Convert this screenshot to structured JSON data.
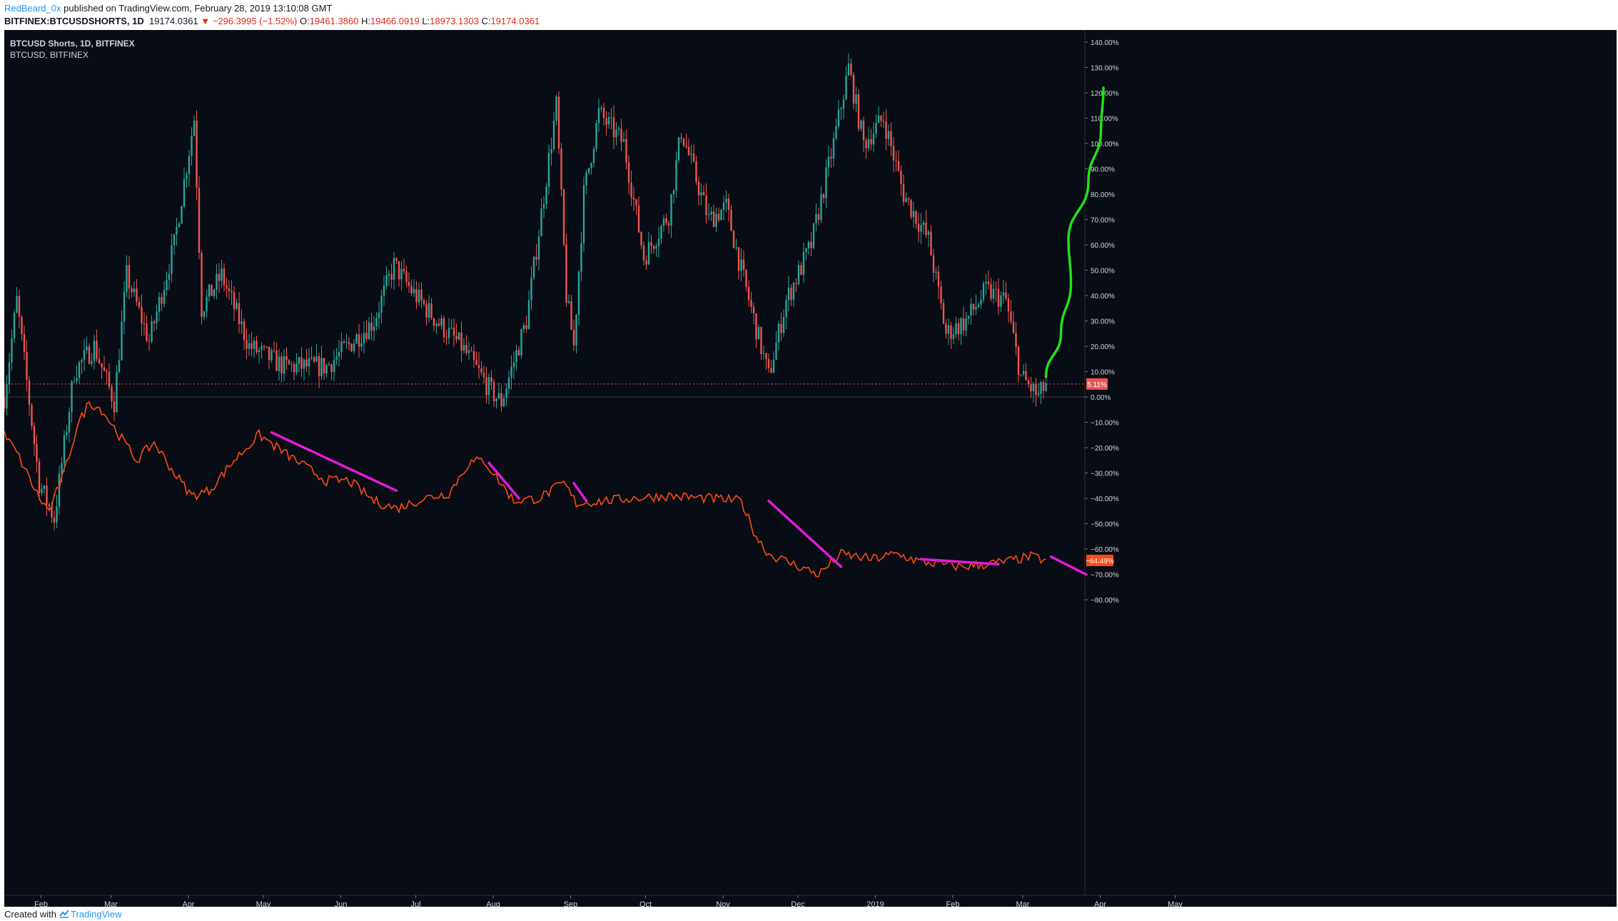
{
  "header": {
    "author": "RedBeard_0x",
    "published_text": "published on TradingView.com, February 28, 2019 13:10:08 GMT",
    "symbol": "BITFINEX:BTCUSDSHORTS, 1D",
    "last": "19174.0361",
    "change": "−296.3995 (−1.52%)",
    "open_label": "O:",
    "open": "19461.3860",
    "high_label": "H:",
    "high": "19466.0919",
    "low_label": "L:",
    "low": "18973.1303",
    "close_label": "C:",
    "close": "19174.0361"
  },
  "legend": {
    "main": "BTCUSD Shorts, 1D, BITFINEX",
    "compare": "BTCUSD, BITFINEX"
  },
  "footer": {
    "created_with": "Created with",
    "brand": "TradingView"
  },
  "colors": {
    "background": "#080c14",
    "up": "#26a69a",
    "down": "#ef5350",
    "compare_line": "#ff4a14",
    "trend_lines": "#e41ad9",
    "projection": "#22e01a",
    "price_line": "#ef5350"
  },
  "chart_data": {
    "type": "candlestick",
    "y_unit": "%",
    "ylim": [
      -80,
      140
    ],
    "y_ticks": [
      "140.00%",
      "130.00%",
      "120.00%",
      "110.00%",
      "100.00%",
      "90.00%",
      "80.00%",
      "70.00%",
      "60.00%",
      "50.00%",
      "40.00%",
      "30.00%",
      "20.00%",
      "10.00%",
      "0.00%",
      "−10.00%",
      "−20.00%",
      "−30.00%",
      "−40.00%",
      "−50.00%",
      "−60.00%",
      "−70.00%",
      "−80.00%"
    ],
    "x_ticks": [
      "Feb",
      "Mar",
      "Apr",
      "May",
      "Jun",
      "Jul",
      "Aug",
      "Sep",
      "Oct",
      "Nov",
      "Dec",
      "2019",
      "Feb",
      "Mar",
      "Apr",
      "May"
    ],
    "x_range": [
      "2018-01-23",
      "2019-05-31"
    ],
    "last_value_label": "5.11%",
    "compare_value_label": "−64.49%",
    "series": [
      {
        "name": "BTCUSD Shorts",
        "kind": "candles",
        "anchors": [
          [
            "2018-01-23",
            0
          ],
          [
            "2018-01-28",
            38
          ],
          [
            "2018-02-06",
            -34
          ],
          [
            "2018-02-12",
            -48
          ],
          [
            "2018-02-20",
            10
          ],
          [
            "2018-02-28",
            20
          ],
          [
            "2018-03-08",
            -2
          ],
          [
            "2018-03-13",
            48
          ],
          [
            "2018-03-22",
            22
          ],
          [
            "2018-04-01",
            60
          ],
          [
            "2018-04-09",
            110
          ],
          [
            "2018-04-12",
            35
          ],
          [
            "2018-04-20",
            48
          ],
          [
            "2018-05-01",
            20
          ],
          [
            "2018-05-15",
            12
          ],
          [
            "2018-06-01",
            12
          ],
          [
            "2018-06-20",
            30
          ],
          [
            "2018-06-28",
            52
          ],
          [
            "2018-07-05",
            42
          ],
          [
            "2018-07-15",
            30
          ],
          [
            "2018-07-25",
            20
          ],
          [
            "2018-08-06",
            2
          ],
          [
            "2018-08-10",
            -2
          ],
          [
            "2018-08-20",
            30
          ],
          [
            "2018-09-01",
            115
          ],
          [
            "2018-09-05",
            40
          ],
          [
            "2018-09-08",
            20
          ],
          [
            "2018-09-12",
            80
          ],
          [
            "2018-09-18",
            112
          ],
          [
            "2018-09-28",
            100
          ],
          [
            "2018-10-06",
            55
          ],
          [
            "2018-10-16",
            72
          ],
          [
            "2018-10-21",
            105
          ],
          [
            "2018-11-01",
            70
          ],
          [
            "2018-11-08",
            75
          ],
          [
            "2018-11-14",
            50
          ],
          [
            "2018-11-25",
            8
          ],
          [
            "2018-12-02",
            38
          ],
          [
            "2018-12-12",
            60
          ],
          [
            "2018-12-21",
            100
          ],
          [
            "2018-12-27",
            130
          ],
          [
            "2019-01-02",
            100
          ],
          [
            "2019-01-10",
            110
          ],
          [
            "2019-01-18",
            80
          ],
          [
            "2019-01-28",
            62
          ],
          [
            "2019-02-04",
            25
          ],
          [
            "2019-02-12",
            30
          ],
          [
            "2019-02-20",
            42
          ],
          [
            "2019-02-28",
            38
          ],
          [
            "2019-03-06",
            8
          ],
          [
            "2019-03-13",
            0
          ],
          [
            "2019-03-16",
            5.11
          ]
        ]
      },
      {
        "name": "BTCUSD, BITFINEX",
        "kind": "line",
        "anchors": [
          [
            "2018-01-23",
            -15
          ],
          [
            "2018-01-28",
            -22
          ],
          [
            "2018-02-06",
            -40
          ],
          [
            "2018-02-10",
            -45
          ],
          [
            "2018-02-16",
            -30
          ],
          [
            "2018-02-21",
            -12
          ],
          [
            "2018-02-26",
            -2
          ],
          [
            "2018-03-03",
            -5
          ],
          [
            "2018-03-10",
            -15
          ],
          [
            "2018-03-17",
            -25
          ],
          [
            "2018-03-24",
            -18
          ],
          [
            "2018-04-01",
            -30
          ],
          [
            "2018-04-08",
            -39
          ],
          [
            "2018-04-15",
            -37
          ],
          [
            "2018-04-25",
            -25
          ],
          [
            "2018-05-05",
            -15
          ],
          [
            "2018-05-08",
            -17
          ],
          [
            "2018-05-15",
            -22
          ],
          [
            "2018-06-01",
            -33
          ],
          [
            "2018-06-10",
            -33
          ],
          [
            "2018-06-20",
            -41
          ],
          [
            "2018-06-29",
            -44
          ],
          [
            "2018-07-10",
            -40
          ],
          [
            "2018-07-20",
            -38
          ],
          [
            "2018-07-28",
            -26
          ],
          [
            "2018-08-03",
            -25
          ],
          [
            "2018-08-15",
            -41
          ],
          [
            "2018-08-25",
            -40
          ],
          [
            "2018-09-04",
            -34
          ],
          [
            "2018-09-09",
            -42
          ],
          [
            "2018-09-20",
            -41
          ],
          [
            "2018-10-01",
            -40
          ],
          [
            "2018-10-15",
            -39
          ],
          [
            "2018-11-01",
            -40
          ],
          [
            "2018-11-14",
            -41
          ],
          [
            "2018-11-20",
            -55
          ],
          [
            "2018-11-25",
            -62
          ],
          [
            "2018-12-05",
            -66
          ],
          [
            "2018-12-15",
            -70
          ],
          [
            "2018-12-24",
            -62
          ],
          [
            "2019-01-05",
            -64
          ],
          [
            "2019-01-15",
            -62
          ],
          [
            "2019-01-25",
            -65
          ],
          [
            "2019-02-10",
            -67
          ],
          [
            "2019-02-20",
            -66
          ],
          [
            "2019-02-28",
            -65
          ],
          [
            "2019-03-10",
            -63
          ],
          [
            "2019-03-16",
            -64.49
          ]
        ]
      }
    ],
    "annotations": [
      {
        "kind": "trend-line",
        "from": [
          "2018-05-10",
          -14
        ],
        "to": [
          "2018-06-29",
          -37
        ]
      },
      {
        "kind": "trend-line",
        "from": [
          "2018-08-05",
          -26
        ],
        "to": [
          "2018-08-17",
          -40
        ]
      },
      {
        "kind": "trend-line",
        "from": [
          "2018-09-08",
          -34
        ],
        "to": [
          "2018-09-13",
          -41
        ]
      },
      {
        "kind": "trend-line",
        "from": [
          "2018-11-25",
          -41
        ],
        "to": [
          "2018-12-24",
          -67
        ]
      },
      {
        "kind": "trend-line",
        "from": [
          "2019-01-25",
          -64
        ],
        "to": [
          "2019-02-25",
          -66
        ]
      },
      {
        "kind": "trend-line",
        "from": [
          "2019-03-18",
          -63
        ],
        "to": [
          "2019-04-01",
          -70
        ]
      },
      {
        "kind": "projection-curve",
        "points": [
          [
            "2019-03-16",
            8
          ],
          [
            "2019-03-22",
            25
          ],
          [
            "2019-03-26",
            45
          ],
          [
            "2019-03-25",
            62
          ],
          [
            "2019-04-02",
            85
          ],
          [
            "2019-04-07",
            105
          ],
          [
            "2019-04-08",
            122
          ]
        ]
      }
    ]
  }
}
